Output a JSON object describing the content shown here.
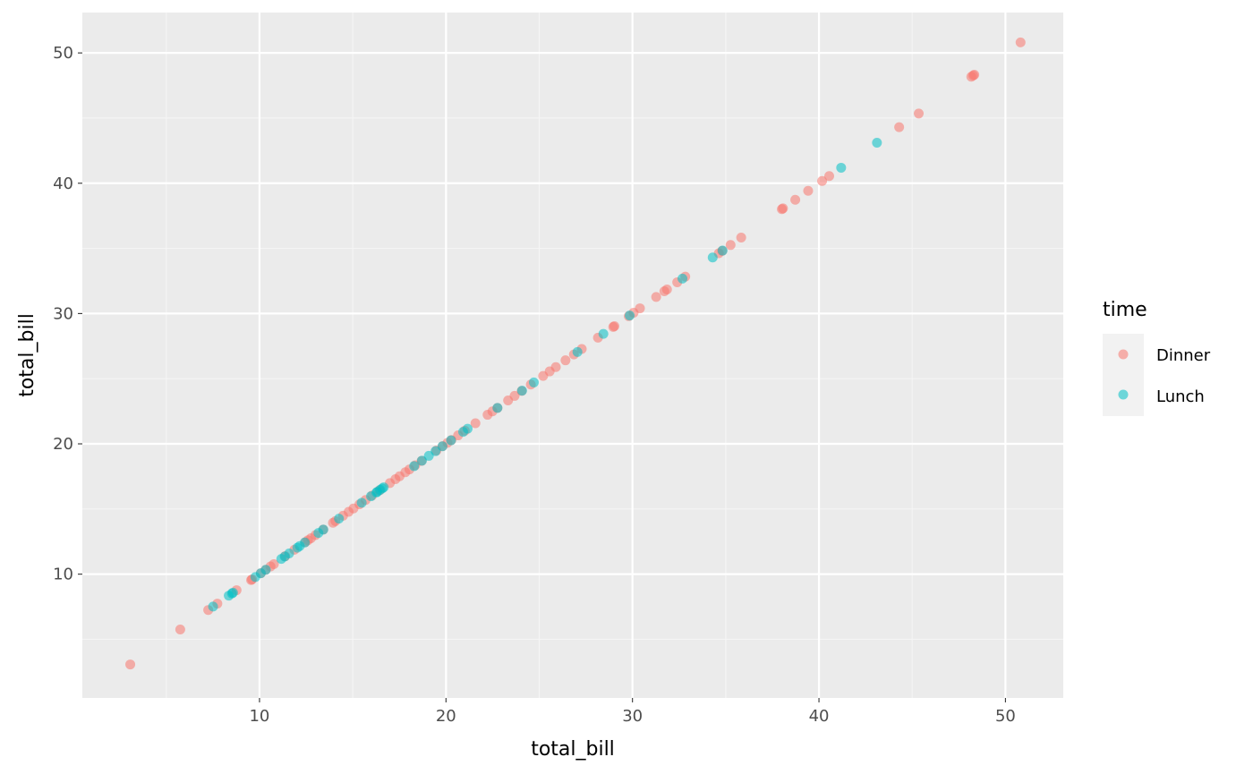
{
  "chart_data": {
    "type": "scatter",
    "title": "",
    "xlabel": "total_bill",
    "ylabel": "total_bill",
    "xlim": [
      0.5,
      53.1
    ],
    "ylim": [
      0.5,
      53.1
    ],
    "x_ticks": [
      10,
      20,
      30,
      40,
      50
    ],
    "y_ticks": [
      10,
      20,
      30,
      40,
      50
    ],
    "x_tick_labels": [
      "10",
      "20",
      "30",
      "40",
      "50"
    ],
    "y_tick_labels": [
      "10",
      "20",
      "30",
      "40",
      "50"
    ],
    "grid": true,
    "legend": {
      "title": "time",
      "position": "right"
    },
    "series": [
      {
        "name": "Dinner",
        "color": "#F8766D",
        "x": [
          3.07,
          5.75,
          7.25,
          7.74,
          8.77,
          9.55,
          9.6,
          10.07,
          10.33,
          10.59,
          10.77,
          11.38,
          11.87,
          12.46,
          12.6,
          12.76,
          13.0,
          13.42,
          13.94,
          14.07,
          14.48,
          14.78,
          15.04,
          15.36,
          15.69,
          16.04,
          16.43,
          16.99,
          17.29,
          17.51,
          17.82,
          18.04,
          18.35,
          18.69,
          19.49,
          19.82,
          20.08,
          20.29,
          20.65,
          21.01,
          21.58,
          22.23,
          22.49,
          22.76,
          23.33,
          23.68,
          24.06,
          24.55,
          25.21,
          25.56,
          25.89,
          26.41,
          26.86,
          27.28,
          28.15,
          28.97,
          29.03,
          29.8,
          30.06,
          30.4,
          31.27,
          31.71,
          31.85,
          32.4,
          32.83,
          34.63,
          34.81,
          35.26,
          35.83,
          38.01,
          38.07,
          38.73,
          39.42,
          40.17,
          40.55,
          44.3,
          45.35,
          48.17,
          48.27,
          48.33,
          50.81
        ],
        "y": [
          3.07,
          5.75,
          7.25,
          7.74,
          8.77,
          9.55,
          9.6,
          10.07,
          10.33,
          10.59,
          10.77,
          11.38,
          11.87,
          12.46,
          12.6,
          12.76,
          13.0,
          13.42,
          13.94,
          14.07,
          14.48,
          14.78,
          15.04,
          15.36,
          15.69,
          16.04,
          16.43,
          16.99,
          17.29,
          17.51,
          17.82,
          18.04,
          18.35,
          18.69,
          19.49,
          19.82,
          20.08,
          20.29,
          20.65,
          21.01,
          21.58,
          22.23,
          22.49,
          22.76,
          23.33,
          23.68,
          24.06,
          24.55,
          25.21,
          25.56,
          25.89,
          26.41,
          26.86,
          27.28,
          28.15,
          28.97,
          29.03,
          29.8,
          30.06,
          30.4,
          31.27,
          31.71,
          31.85,
          32.4,
          32.83,
          34.63,
          34.81,
          35.26,
          35.83,
          38.01,
          38.07,
          38.73,
          39.42,
          40.17,
          40.55,
          44.3,
          45.35,
          48.17,
          48.27,
          48.33,
          50.81
        ]
      },
      {
        "name": "Lunch",
        "color": "#00BFC4",
        "x": [
          7.51,
          8.35,
          8.52,
          8.58,
          9.78,
          10.07,
          10.34,
          11.17,
          11.35,
          11.59,
          12.03,
          12.16,
          12.43,
          13.16,
          13.42,
          14.26,
          15.48,
          15.98,
          16.27,
          16.32,
          16.47,
          16.58,
          16.66,
          18.29,
          18.71,
          19.08,
          19.44,
          19.81,
          20.27,
          20.92,
          21.16,
          22.76,
          24.08,
          24.71,
          27.05,
          28.44,
          29.85,
          32.68,
          34.3,
          34.83,
          43.11,
          41.19
        ],
        "y": [
          7.51,
          8.35,
          8.52,
          8.58,
          9.78,
          10.07,
          10.34,
          11.17,
          11.35,
          11.59,
          12.03,
          12.16,
          12.43,
          13.16,
          13.42,
          14.26,
          15.48,
          15.98,
          16.27,
          16.32,
          16.47,
          16.58,
          16.66,
          18.29,
          18.71,
          19.08,
          19.44,
          19.81,
          20.27,
          20.92,
          21.16,
          22.76,
          24.08,
          24.71,
          27.05,
          28.44,
          29.85,
          32.68,
          34.3,
          34.83,
          43.11,
          41.19
        ]
      }
    ]
  },
  "colors": {
    "panel_background": "#EBEBEB",
    "grid_major": "#FFFFFF",
    "grid_minor": "#F5F5F5",
    "legend_key_background": "#F2F2F2"
  }
}
